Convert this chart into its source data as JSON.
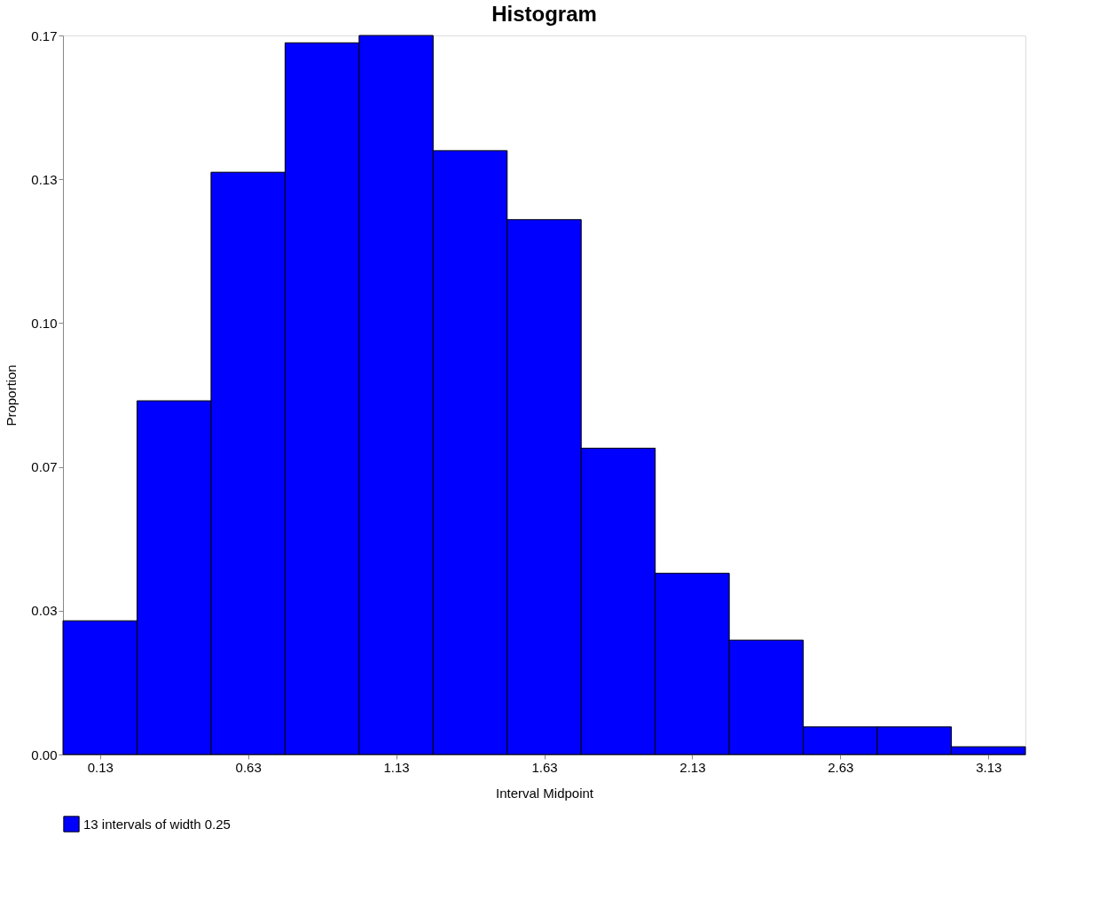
{
  "chart_data": {
    "type": "histogram",
    "title": "Histogram",
    "xlabel": "Interval Midpoint",
    "ylabel": "Proportion",
    "bins": [
      0.005,
      0.255,
      0.505,
      0.755,
      1.005,
      1.255,
      1.505,
      1.755,
      2.005,
      2.255,
      2.505,
      2.755,
      3.005,
      3.255
    ],
    "series": [
      {
        "name": "13 intervals of width 0.25",
        "color": "#0000ff",
        "values": [
          0.031,
          0.082,
          0.135,
          0.165,
          0.1667,
          0.14,
          0.124,
          0.071,
          0.042,
          0.0265,
          0.0064,
          0.0064,
          0.0018
        ]
      }
    ],
    "xlim": [
      0.005,
      3.255
    ],
    "xticks": [
      0.13,
      0.63,
      1.13,
      1.63,
      2.13,
      2.63,
      3.13
    ],
    "ylim": [
      0,
      0.1667
    ],
    "yticks": [
      {
        "value": 0,
        "label": "0.00"
      },
      {
        "value": 0.0333,
        "label": "0.03"
      },
      {
        "value": 0.0667,
        "label": "0.07"
      },
      {
        "value": 0.1,
        "label": "0.10"
      },
      {
        "value": 0.1333,
        "label": "0.13"
      },
      {
        "value": 0.1667,
        "label": "0.17"
      }
    ],
    "grid": false,
    "legend": "bottom"
  }
}
